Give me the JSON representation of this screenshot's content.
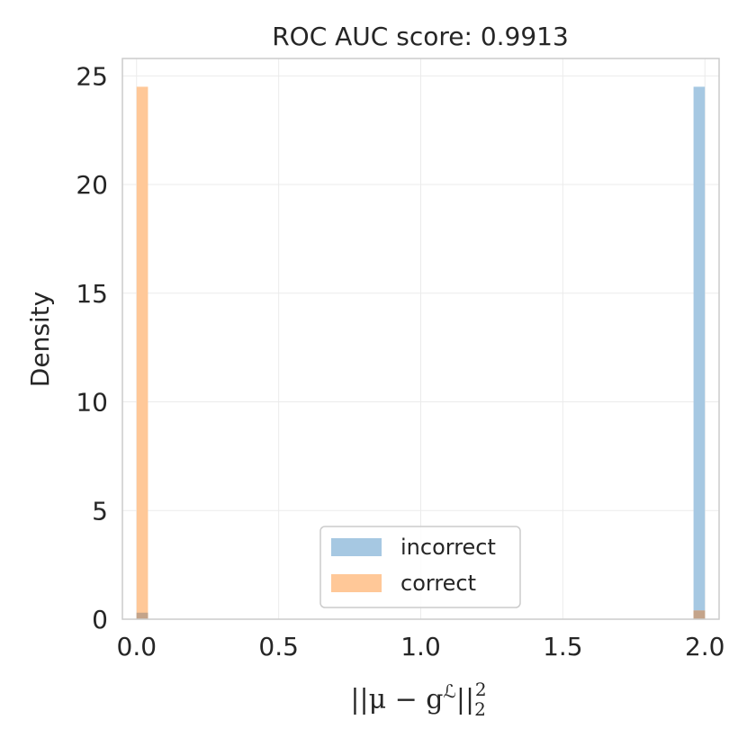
{
  "chart_data": {
    "type": "bar",
    "title": "ROC AUC score: 0.9913",
    "xlabel": "||μ − g^ℒ||₂²",
    "xlabel_parts": {
      "main": "||μ − g",
      "sup_script": "ℒ",
      "tail": "||",
      "sub": "2",
      "sup": "2"
    },
    "ylabel": "Density",
    "xlim": [
      -0.05,
      2.05
    ],
    "ylim": [
      0,
      25.8
    ],
    "xticks": [
      0.0,
      0.5,
      1.0,
      1.5,
      2.0
    ],
    "xtick_labels": [
      "0.0",
      "0.5",
      "1.0",
      "1.5",
      "2.0"
    ],
    "yticks": [
      0,
      5,
      10,
      15,
      20,
      25
    ],
    "ytick_labels": [
      "0",
      "5",
      "10",
      "15",
      "20",
      "25"
    ],
    "grid": true,
    "legend_position": "lower-center",
    "series": [
      {
        "name": "incorrect",
        "color": "#a6c8e2",
        "bars": [
          {
            "x0": 0.0,
            "x1": 0.04,
            "y": 0.3
          },
          {
            "x0": 1.96,
            "x1": 2.0,
            "y": 24.5
          }
        ]
      },
      {
        "name": "correct",
        "color": "#ffc898",
        "bars": [
          {
            "x0": 0.0,
            "x1": 0.04,
            "y": 24.5
          },
          {
            "x0": 1.96,
            "x1": 2.0,
            "y": 0.4
          }
        ]
      }
    ],
    "overlap_color": "#c4a48a"
  }
}
